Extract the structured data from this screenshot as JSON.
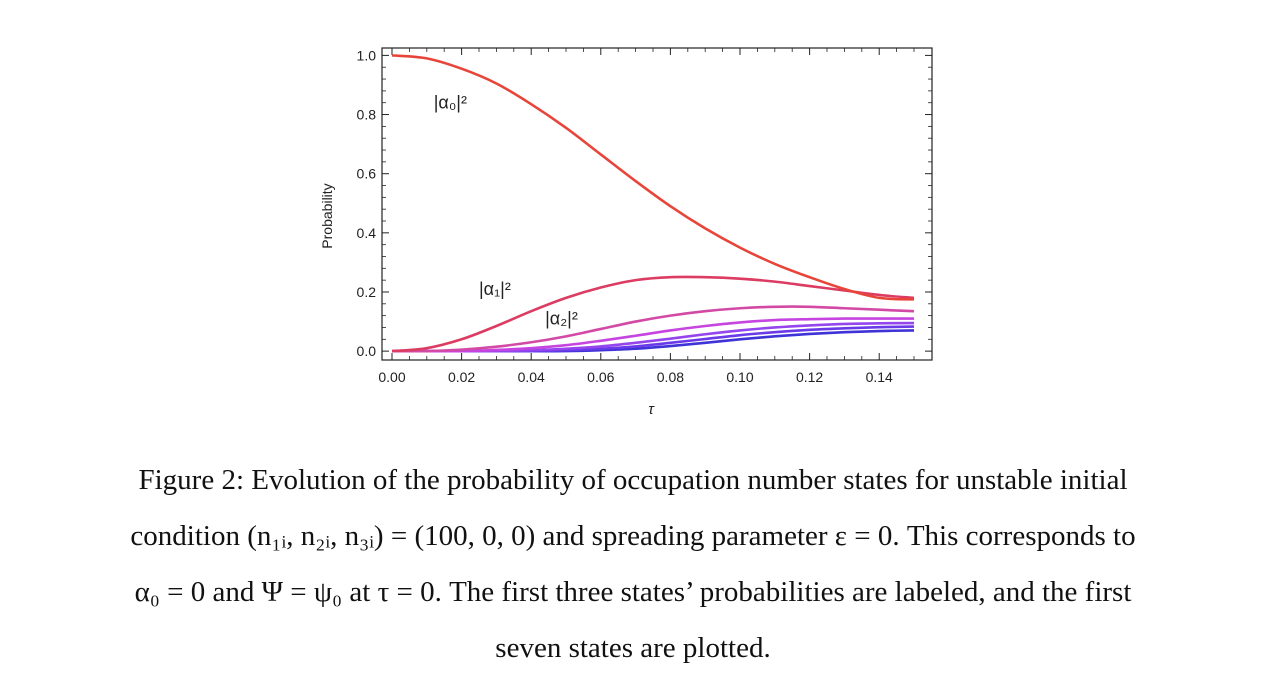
{
  "chart_data": {
    "type": "line",
    "xlabel": "τ",
    "ylabel": "Probability",
    "xlim": [
      0,
      0.15
    ],
    "ylim": [
      0,
      1.0
    ],
    "xticks": [
      "0.00",
      "0.02",
      "0.04",
      "0.06",
      "0.08",
      "0.10",
      "0.12",
      "0.14"
    ],
    "yticks": [
      "0.0",
      "0.2",
      "0.4",
      "0.6",
      "0.8",
      "1.0"
    ],
    "grid": false,
    "x": [
      0,
      0.01,
      0.02,
      0.03,
      0.04,
      0.05,
      0.06,
      0.07,
      0.08,
      0.09,
      0.1,
      0.11,
      0.12,
      0.13,
      0.14,
      0.15
    ],
    "series": [
      {
        "name": "|α₀|²",
        "color": "#e8453a",
        "values": [
          1.0,
          0.99,
          0.955,
          0.905,
          0.835,
          0.755,
          0.665,
          0.575,
          0.49,
          0.415,
          0.35,
          0.295,
          0.25,
          0.21,
          0.18,
          0.175
        ]
      },
      {
        "name": "|α₁|²",
        "color": "#dc3c62",
        "values": [
          0.0,
          0.01,
          0.04,
          0.085,
          0.135,
          0.18,
          0.215,
          0.24,
          0.25,
          0.25,
          0.245,
          0.235,
          0.22,
          0.205,
          0.19,
          0.18
        ]
      },
      {
        "name": "|α₂|²",
        "color": "#d24aa6",
        "values": [
          0.0,
          0.0,
          0.005,
          0.015,
          0.03,
          0.05,
          0.075,
          0.1,
          0.12,
          0.135,
          0.145,
          0.15,
          0.15,
          0.145,
          0.14,
          0.135
        ]
      },
      {
        "color": "#c645e0",
        "values": [
          0.0,
          0.0,
          0.0,
          0.004,
          0.01,
          0.02,
          0.035,
          0.052,
          0.07,
          0.085,
          0.097,
          0.105,
          0.108,
          0.11,
          0.11,
          0.11
        ]
      },
      {
        "color": "#9445ee",
        "values": [
          0.0,
          0.0,
          0.0,
          0.0,
          0.003,
          0.008,
          0.016,
          0.028,
          0.042,
          0.057,
          0.07,
          0.08,
          0.087,
          0.092,
          0.094,
          0.095
        ]
      },
      {
        "color": "#6a3ae8",
        "values": [
          0.0,
          0.0,
          0.0,
          0.0,
          0.0,
          0.003,
          0.008,
          0.016,
          0.028,
          0.041,
          0.054,
          0.064,
          0.072,
          0.077,
          0.081,
          0.083
        ]
      },
      {
        "color": "#3e33d6",
        "values": [
          0.0,
          0.0,
          0.0,
          0.0,
          0.0,
          0.0,
          0.003,
          0.008,
          0.017,
          0.028,
          0.04,
          0.05,
          0.058,
          0.064,
          0.068,
          0.07
        ]
      }
    ],
    "annotations": [
      {
        "text": "|α₀|²",
        "x": 0.012,
        "y": 0.82
      },
      {
        "text": "|α₁|²",
        "x": 0.025,
        "y": 0.19
      },
      {
        "text": "|α₂|²",
        "x": 0.044,
        "y": 0.09
      }
    ]
  },
  "caption": {
    "line1": "Figure 2: Evolution of the probability of occupation number states for unstable initial",
    "line2": "condition (n₁ᵢ, n₂ᵢ, n₃ᵢ) = (100, 0, 0) and spreading parameter ε = 0. This corresponds to",
    "line3": "α₀ = 0 and Ψ = ψ₀ at τ = 0. The first three states’ probabilities are labeled, and the first",
    "line4": "seven states are plotted."
  }
}
